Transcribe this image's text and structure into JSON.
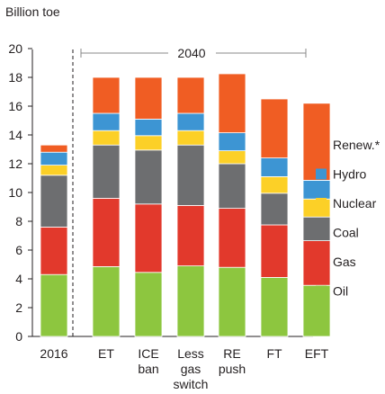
{
  "chart_data": {
    "type": "bar",
    "stacked": true,
    "unit_label": "Billion toe",
    "period_label": "2040",
    "categories": [
      [
        "2016"
      ],
      [
        "ET"
      ],
      [
        "ICE",
        "ban"
      ],
      [
        "Less",
        "gas",
        "switch"
      ],
      [
        "RE",
        "push"
      ],
      [
        "FT"
      ],
      [
        "EFT"
      ]
    ],
    "series": [
      {
        "name": "Oil",
        "color": "#8dc63f",
        "values": [
          4.3,
          4.85,
          4.45,
          4.9,
          4.8,
          4.1,
          3.55
        ]
      },
      {
        "name": "Gas",
        "color": "#e2392c",
        "values": [
          3.3,
          4.75,
          4.75,
          4.2,
          4.1,
          3.65,
          3.1
        ]
      },
      {
        "name": "Coal",
        "color": "#6d6e70",
        "values": [
          3.6,
          3.7,
          3.75,
          4.2,
          3.1,
          2.2,
          1.65
        ]
      },
      {
        "name": "Nuclear",
        "color": "#fcd027",
        "values": [
          0.7,
          1.0,
          1.0,
          1.0,
          0.9,
          1.15,
          1.25
        ]
      },
      {
        "name": "Hydro",
        "color": "#3d95d3",
        "values": [
          0.9,
          1.2,
          1.15,
          1.2,
          1.25,
          1.3,
          1.3
        ]
      },
      {
        "name": "Renew.*",
        "color": "#f05d23",
        "values": [
          0.5,
          2.5,
          2.9,
          2.5,
          4.1,
          4.1,
          5.35
        ]
      }
    ],
    "ylim": [
      0,
      20
    ],
    "yticks": [
      0,
      2,
      4,
      6,
      8,
      10,
      12,
      14,
      16,
      18,
      20
    ],
    "grid": false,
    "legend_position": "right"
  }
}
